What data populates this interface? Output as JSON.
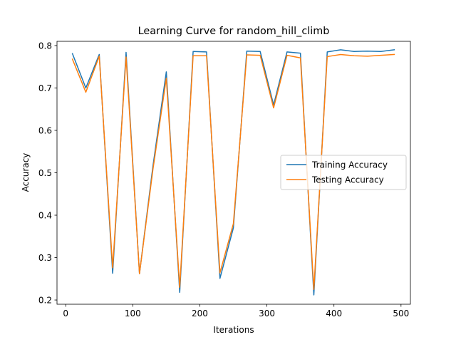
{
  "chart_data": {
    "type": "line",
    "title": "Learning Curve for random_hill_climb",
    "xlabel": "Iterations",
    "ylabel": "Accuracy",
    "xlim": [
      -13,
      514
    ],
    "ylim": [
      0.19,
      0.81
    ],
    "xticks": [
      0,
      100,
      200,
      300,
      400,
      500
    ],
    "yticks": [
      0.2,
      0.3,
      0.4,
      0.5,
      0.6,
      0.7,
      0.8
    ],
    "ytick_labels": [
      "0.2",
      "0.3",
      "0.4",
      "0.5",
      "0.6",
      "0.7",
      "0.8"
    ],
    "grid": false,
    "legend_position": "center-right",
    "x": [
      10,
      30,
      50,
      70,
      90,
      110,
      130,
      150,
      170,
      190,
      210,
      230,
      250,
      270,
      290,
      310,
      330,
      350,
      370,
      390,
      410,
      430,
      450,
      470,
      490
    ],
    "series": [
      {
        "name": "Training Accuracy",
        "color": "#1f77b4",
        "values": [
          0.781,
          0.7,
          0.779,
          0.263,
          0.784,
          0.262,
          0.515,
          0.738,
          0.218,
          0.786,
          0.785,
          0.251,
          0.37,
          0.787,
          0.786,
          0.66,
          0.785,
          0.782,
          0.212,
          0.785,
          0.79,
          0.786,
          0.787,
          0.786,
          0.79
        ]
      },
      {
        "name": "Testing Accuracy",
        "color": "#ff7f0e",
        "values": [
          0.768,
          0.69,
          0.775,
          0.276,
          0.773,
          0.262,
          0.507,
          0.723,
          0.23,
          0.776,
          0.776,
          0.264,
          0.38,
          0.778,
          0.777,
          0.653,
          0.777,
          0.771,
          0.225,
          0.774,
          0.779,
          0.776,
          0.775,
          0.777,
          0.779
        ]
      }
    ]
  }
}
